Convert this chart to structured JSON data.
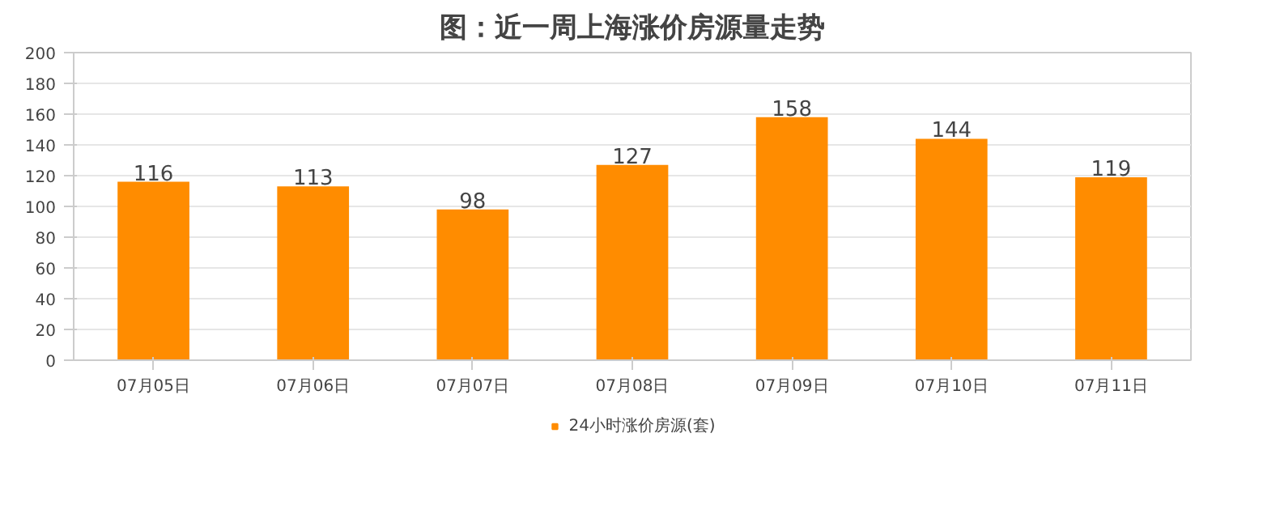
{
  "chart_data": {
    "type": "bar",
    "title": "图：近一周上海涨价房源量走势",
    "categories": [
      "07月05日",
      "07月06日",
      "07月07日",
      "07月08日",
      "07月09日",
      "07月10日",
      "07月11日"
    ],
    "series": [
      {
        "name": "24小时涨价房源(套)",
        "color": "#ff8c00",
        "values": [
          116,
          113,
          98,
          127,
          158,
          144,
          119
        ]
      }
    ],
    "ylim": [
      0,
      200
    ],
    "yticks": [
      0,
      20,
      40,
      60,
      80,
      100,
      120,
      140,
      160,
      180,
      200
    ],
    "grid": "y",
    "legend": "bottom",
    "data_labels": true
  }
}
